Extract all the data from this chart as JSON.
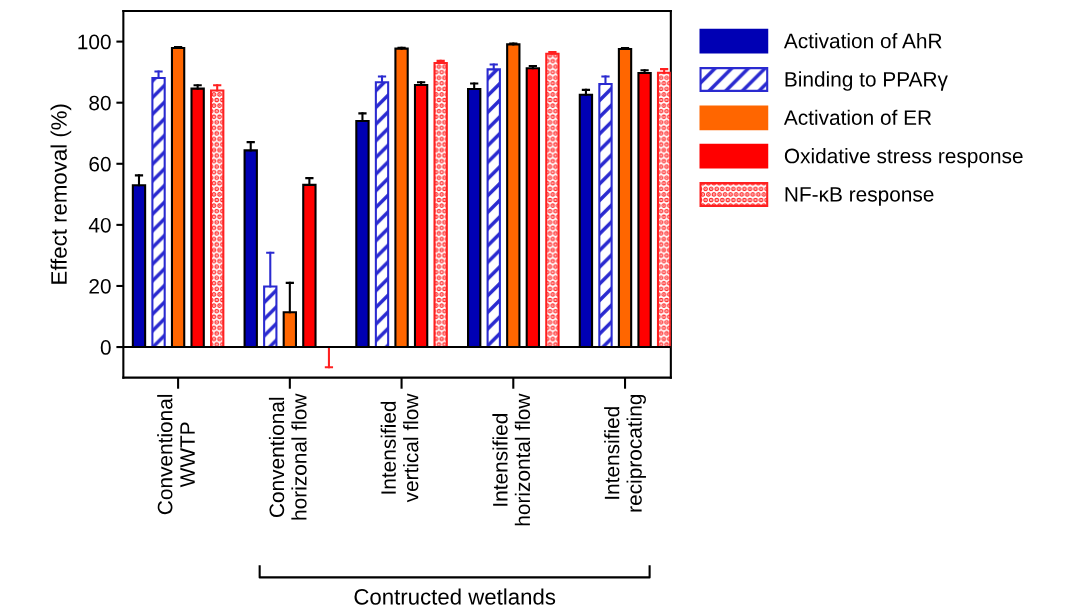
{
  "chart_data": {
    "type": "bar",
    "categories": [
      "Conventional\nWWTP",
      "Conventional\nhorizonal flow",
      "Intensified\nvertical flow",
      "Intensified\nhorizontal flow",
      "Intensified\nreciprocating"
    ],
    "ylabel": "Effect removal (%)",
    "ylim": [
      -10,
      110
    ],
    "yticks": [
      0,
      20,
      40,
      60,
      80,
      100
    ],
    "legend": "right",
    "grid": false,
    "ref_lines": [
      {
        "axis": "y",
        "value": 0,
        "color": "#000000"
      }
    ],
    "annotations": [
      "Contructed wetlands"
    ],
    "series": [
      {
        "name": "Activation of AhR",
        "color": "#0000b4",
        "values": [
          53,
          64.4,
          74,
          84.5,
          82.6
        ],
        "errors": [
          [
            53,
            56.2
          ],
          [
            64.4,
            67.1
          ],
          [
            74,
            76.5
          ],
          [
            84.5,
            86.3
          ],
          [
            82.6,
            84.2
          ]
        ]
      },
      {
        "name": "Binding to PPARγ",
        "color": "#2a2ad0",
        "values": [
          88.1,
          19.8,
          86.7,
          90.9,
          86.1
        ],
        "errors": [
          [
            88.1,
            90.2
          ],
          [
            19.8,
            30.9
          ],
          [
            86.7,
            88.6
          ],
          [
            90.9,
            92.5
          ],
          [
            86.1,
            88.6
          ]
        ]
      },
      {
        "name": "Activation of ER",
        "color": "#ff6600",
        "values": [
          97.9,
          11.4,
          97.7,
          99.1,
          97.6
        ],
        "errors": [
          [
            97.9,
            98.2
          ],
          [
            11.4,
            21
          ],
          [
            97.7,
            98
          ],
          [
            99.1,
            99.4
          ],
          [
            97.6,
            97.9
          ]
        ]
      },
      {
        "name": "Oxidative stress response",
        "color": "#ff0000",
        "values": [
          84.6,
          53.1,
          85.8,
          91.3,
          89.7
        ],
        "errors": [
          [
            84.6,
            85.7
          ],
          [
            53.1,
            55.3
          ],
          [
            85.8,
            86.7
          ],
          [
            91.3,
            92
          ],
          [
            89.7,
            90.6
          ]
        ]
      },
      {
        "name": "NF-κB response",
        "color": "#ff2020",
        "values": [
          84,
          0,
          93,
          96,
          89.8
        ],
        "errors": [
          [
            84,
            85.7
          ],
          [
            -6.6,
            0
          ],
          [
            93,
            93.7
          ],
          [
            96,
            96.6
          ],
          [
            89.8,
            91
          ]
        ]
      }
    ]
  }
}
